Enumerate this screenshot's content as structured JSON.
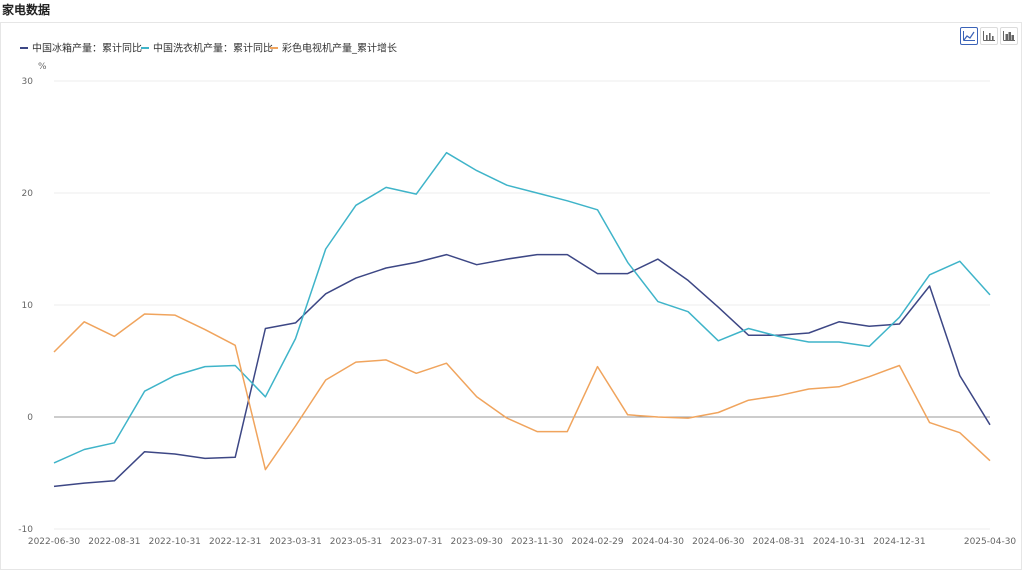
{
  "page": {
    "title": "家电数据"
  },
  "toolbar": {
    "buttons": [
      {
        "name": "line-chart-icon",
        "active": true
      },
      {
        "name": "bar-chart-icon",
        "active": false
      },
      {
        "name": "area-chart-icon",
        "active": false
      }
    ]
  },
  "colors": {
    "fridge": "#3d4785",
    "washer": "#3fb4c9",
    "tv": "#f0a45d",
    "zero_line": "#999999",
    "grid": "#ececec"
  },
  "chart_data": {
    "type": "line",
    "ylabel": "%",
    "ylim": [
      -10,
      30
    ],
    "yticks": [
      -10,
      0,
      10,
      20,
      30
    ],
    "grid": true,
    "legend_position": "top-left",
    "x": [
      "2022-06-30",
      "2022-07-31",
      "2022-08-31",
      "2022-09-30",
      "2022-10-31",
      "2022-11-30",
      "2022-12-31",
      "2023-02-28",
      "2023-03-31",
      "2023-04-30",
      "2023-05-31",
      "2023-06-30",
      "2023-07-31",
      "2023-08-31",
      "2023-09-30",
      "2023-10-31",
      "2023-11-30",
      "2023-12-31",
      "2024-02-29",
      "2024-03-31",
      "2024-04-30",
      "2024-05-31",
      "2024-06-30",
      "2024-07-31",
      "2024-08-31",
      "2024-09-30",
      "2024-10-31",
      "2024-11-30",
      "2024-12-31",
      "2025-02-28",
      "2025-03-31",
      "2025-04-30"
    ],
    "xticks": [
      "2022-06-30",
      "2022-08-31",
      "2022-10-31",
      "2022-12-31",
      "2023-03-31",
      "2023-05-31",
      "2023-07-31",
      "2023-09-30",
      "2023-11-30",
      "2024-02-29",
      "2024-04-30",
      "2024-06-30",
      "2024-08-31",
      "2024-10-31",
      "2024-12-31",
      "2025-04-30"
    ],
    "series": [
      {
        "name": "中国冰箱产量：累计同比",
        "color": "#3d4785",
        "values": [
          -6.2,
          -5.9,
          -5.7,
          -3.1,
          -3.3,
          -3.7,
          -3.6,
          7.9,
          8.4,
          11.0,
          12.4,
          13.3,
          13.8,
          14.5,
          13.6,
          14.1,
          14.5,
          14.5,
          12.8,
          12.8,
          14.1,
          12.2,
          9.8,
          7.3,
          7.3,
          7.5,
          8.5,
          8.1,
          8.3,
          11.7,
          3.7,
          -0.7
        ]
      },
      {
        "name": "中国洗衣机产量：累计同比",
        "color": "#3fb4c9",
        "values": [
          -4.1,
          -2.9,
          -2.3,
          2.3,
          3.7,
          4.5,
          4.6,
          1.8,
          7.0,
          15.0,
          18.9,
          20.5,
          19.9,
          23.6,
          22.0,
          20.7,
          20.0,
          19.3,
          18.5,
          13.8,
          10.3,
          9.4,
          6.8,
          7.9,
          7.2,
          6.7,
          6.7,
          6.3,
          8.9,
          12.7,
          13.9,
          10.9
        ]
      },
      {
        "name": "彩色电视机产量_累计增长",
        "color": "#f0a45d",
        "values": [
          5.8,
          8.5,
          7.2,
          9.2,
          9.1,
          7.8,
          6.4,
          -4.7,
          -0.8,
          3.3,
          4.9,
          5.1,
          3.9,
          4.8,
          1.8,
          -0.1,
          -1.3,
          -1.3,
          4.5,
          0.2,
          0.0,
          -0.1,
          0.4,
          1.5,
          1.9,
          2.5,
          2.7,
          3.6,
          4.6,
          -0.5,
          -1.4,
          -3.9
        ]
      }
    ]
  }
}
